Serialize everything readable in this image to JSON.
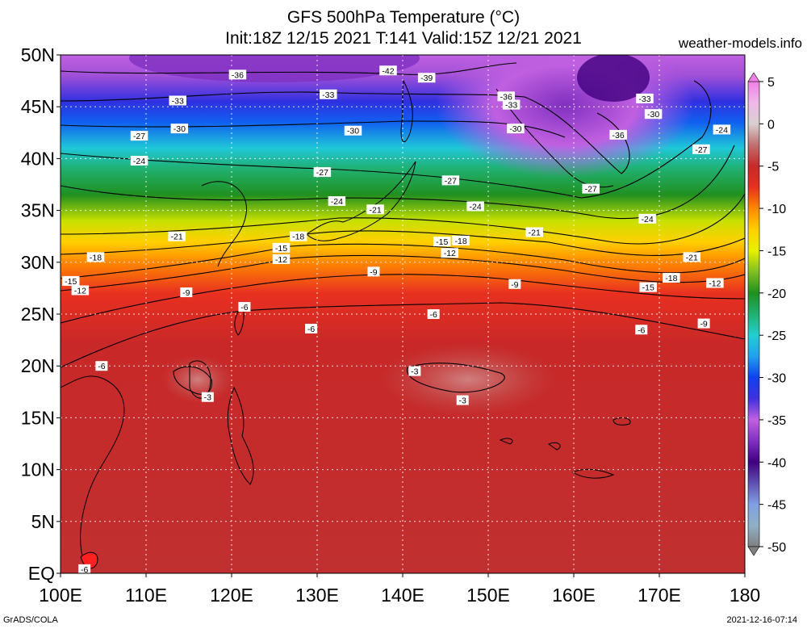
{
  "header": {
    "title": "GFS 500hPa Temperature (°C)",
    "subtitle": "Init:18Z 12/15 2021 T:141 Valid:15Z 12/21 2021",
    "credit": "weather-models.info"
  },
  "axes": {
    "lat_labels": [
      "EQ",
      "5N",
      "10N",
      "15N",
      "20N",
      "25N",
      "30N",
      "35N",
      "40N",
      "45N",
      "50N"
    ],
    "lon_labels": [
      "100E",
      "110E",
      "120E",
      "130E",
      "140E",
      "150E",
      "160E",
      "170E",
      "180"
    ]
  },
  "colorbar": {
    "ticks": [
      "5",
      "0",
      "-5",
      "-10",
      "-15",
      "-20",
      "-25",
      "-30",
      "-35",
      "-40",
      "-45",
      "-50"
    ],
    "stops": [
      {
        "v": 5,
        "color": "#f080e8"
      },
      {
        "v": 2.5,
        "color": "#f0b8e8"
      },
      {
        "v": 0,
        "color": "#d8d0d0"
      },
      {
        "v": -2.5,
        "color": "#c07070"
      },
      {
        "v": -5,
        "color": "#c82828"
      },
      {
        "v": -7.5,
        "color": "#e83020"
      },
      {
        "v": -10,
        "color": "#ff8800"
      },
      {
        "v": -12.5,
        "color": "#ffd000"
      },
      {
        "v": -15,
        "color": "#e8f000"
      },
      {
        "v": -17.5,
        "color": "#80c020"
      },
      {
        "v": -20,
        "color": "#209020"
      },
      {
        "v": -22.5,
        "color": "#20b070"
      },
      {
        "v": -25,
        "color": "#20d0d0"
      },
      {
        "v": -27.5,
        "color": "#20a0f0"
      },
      {
        "v": -30,
        "color": "#1040f0"
      },
      {
        "v": -32.5,
        "color": "#4030e0"
      },
      {
        "v": -35,
        "color": "#c060e0"
      },
      {
        "v": -37.5,
        "color": "#8030c0"
      },
      {
        "v": -40,
        "color": "#400080"
      },
      {
        "v": -42.5,
        "color": "#6050b0"
      },
      {
        "v": -45,
        "color": "#80a0e0"
      },
      {
        "v": -47.5,
        "color": "#90b0c8"
      },
      {
        "v": -50,
        "color": "#808080"
      }
    ]
  },
  "contour_labels": [
    {
      "text": "-36",
      "lon": 120.7,
      "lat": 48.1
    },
    {
      "text": "-42",
      "lon": 138.3,
      "lat": 48.5
    },
    {
      "text": "-39",
      "lon": 142.8,
      "lat": 47.8
    },
    {
      "text": "-33",
      "lon": 113.7,
      "lat": 45.6
    },
    {
      "text": "-33",
      "lon": 131.3,
      "lat": 46.2
    },
    {
      "text": "-36",
      "lon": 152.1,
      "lat": 46.0
    },
    {
      "text": "-33",
      "lon": 152.7,
      "lat": 45.2
    },
    {
      "text": "-33",
      "lon": 168.3,
      "lat": 45.8
    },
    {
      "text": "-30",
      "lon": 169.3,
      "lat": 44.3
    },
    {
      "text": "-27",
      "lon": 109.2,
      "lat": 42.2
    },
    {
      "text": "-30",
      "lon": 113.9,
      "lat": 42.9
    },
    {
      "text": "-30",
      "lon": 134.2,
      "lat": 42.7
    },
    {
      "text": "-30",
      "lon": 153.2,
      "lat": 42.9
    },
    {
      "text": "-36",
      "lon": 165.2,
      "lat": 42.3
    },
    {
      "text": "-24",
      "lon": 177.3,
      "lat": 42.8
    },
    {
      "text": "-27",
      "lon": 174.9,
      "lat": 40.9
    },
    {
      "text": "-24",
      "lon": 109.2,
      "lat": 39.8
    },
    {
      "text": "-27",
      "lon": 130.6,
      "lat": 38.7
    },
    {
      "text": "-27",
      "lon": 145.6,
      "lat": 37.9
    },
    {
      "text": "-27",
      "lon": 162.0,
      "lat": 37.1
    },
    {
      "text": "-24",
      "lon": 132.3,
      "lat": 35.9
    },
    {
      "text": "-21",
      "lon": 136.8,
      "lat": 35.1
    },
    {
      "text": "-24",
      "lon": 148.5,
      "lat": 35.4
    },
    {
      "text": "-24",
      "lon": 168.6,
      "lat": 34.2
    },
    {
      "text": "-21",
      "lon": 113.6,
      "lat": 32.5
    },
    {
      "text": "-18",
      "lon": 127.8,
      "lat": 32.5
    },
    {
      "text": "-15",
      "lon": 125.8,
      "lat": 31.4
    },
    {
      "text": "-15",
      "lon": 144.6,
      "lat": 32.0
    },
    {
      "text": "-18",
      "lon": 146.8,
      "lat": 32.1
    },
    {
      "text": "-12",
      "lon": 145.5,
      "lat": 30.9
    },
    {
      "text": "-21",
      "lon": 155.4,
      "lat": 32.9
    },
    {
      "text": "-18",
      "lon": 104.1,
      "lat": 30.5
    },
    {
      "text": "-12",
      "lon": 125.8,
      "lat": 30.3
    },
    {
      "text": "-21",
      "lon": 173.8,
      "lat": 30.5
    },
    {
      "text": "-9",
      "lon": 136.6,
      "lat": 29.1
    },
    {
      "text": "-15",
      "lon": 101.2,
      "lat": 28.2
    },
    {
      "text": "-12",
      "lon": 102.3,
      "lat": 27.3
    },
    {
      "text": "-9",
      "lon": 153.1,
      "lat": 27.9
    },
    {
      "text": "-18",
      "lon": 171.4,
      "lat": 28.5
    },
    {
      "text": "-15",
      "lon": 168.7,
      "lat": 27.6
    },
    {
      "text": "-12",
      "lon": 176.5,
      "lat": 28.0
    },
    {
      "text": "-9",
      "lon": 114.7,
      "lat": 27.1
    },
    {
      "text": "-6",
      "lon": 121.5,
      "lat": 25.7
    },
    {
      "text": "-6",
      "lon": 143.6,
      "lat": 25.0
    },
    {
      "text": "-9",
      "lon": 175.2,
      "lat": 24.1
    },
    {
      "text": "-6",
      "lon": 129.3,
      "lat": 23.6
    },
    {
      "text": "-6",
      "lon": 167.9,
      "lat": 23.5
    },
    {
      "text": "-6",
      "lon": 104.8,
      "lat": 20.0
    },
    {
      "text": "-3",
      "lon": 141.4,
      "lat": 19.5
    },
    {
      "text": "-3",
      "lon": 117.2,
      "lat": 17.0
    },
    {
      "text": "-3",
      "lon": 147.0,
      "lat": 16.7
    },
    {
      "text": "-6",
      "lon": 102.8,
      "lat": 0.4
    }
  ],
  "footer": {
    "left": "GrADS/COLA",
    "right": "2021-12-16-07:14"
  }
}
